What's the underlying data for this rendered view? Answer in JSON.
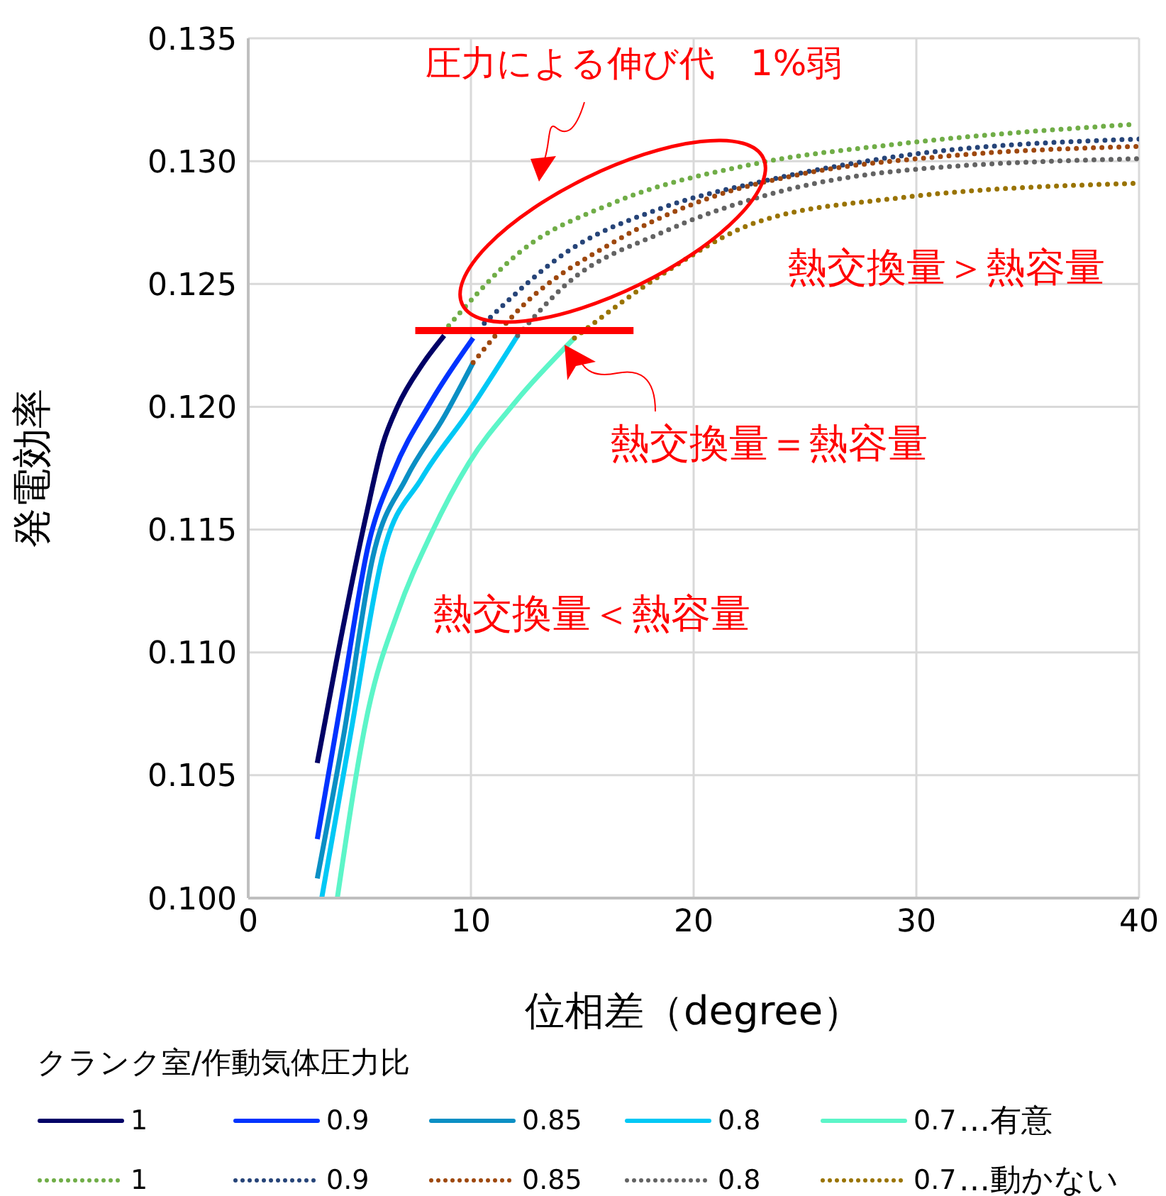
{
  "chart_data": {
    "type": "line",
    "xlabel": "位相差（degree）",
    "ylabel": "発電効率",
    "legend_title": "クランク室/作動気体圧力比",
    "xlim": [
      0,
      40
    ],
    "xticks": [
      0,
      10,
      20,
      30,
      40
    ],
    "ylim": [
      0.1,
      0.135
    ],
    "yticks": [
      {
        "value": 0.1,
        "label": "0.100"
      },
      {
        "value": 0.105,
        "label": "0.105"
      },
      {
        "value": 0.11,
        "label": "0.110"
      },
      {
        "value": 0.115,
        "label": "0.115"
      },
      {
        "value": 0.12,
        "label": "0.120"
      },
      {
        "value": 0.125,
        "label": "0.125"
      },
      {
        "value": 0.13,
        "label": "0.130"
      },
      {
        "value": 0.135,
        "label": "0.135"
      }
    ],
    "grid": true,
    "legend": "bottom",
    "marker": "none",
    "annotations": [
      "圧力による伸び代　1%弱",
      "熱交換量＞熱容量",
      "熱交換量＝熱容量",
      "熱交換量＜熱容量",
      "…有意",
      "…動かない"
    ],
    "series": [
      {
        "name": "1",
        "color": "#000066",
        "line_style": "solid",
        "x": [
          3.1,
          3.95,
          5.3,
          6.05,
          6.7,
          7.8,
          8.8
        ],
        "values": [
          0.1055,
          0.1096,
          0.1156,
          0.1185,
          0.12,
          0.1217,
          0.1229
        ]
      },
      {
        "name": "0.9",
        "color": "#0033ff",
        "line_style": "solid",
        "x": [
          3.1,
          4.3,
          5.4,
          6.5,
          8.2,
          10.1
        ],
        "values": [
          0.1024,
          0.1087,
          0.1144,
          0.1173,
          0.1202,
          0.1228
        ]
      },
      {
        "name": "0.85",
        "color": "#0a8fc4",
        "line_style": "solid",
        "x": [
          3.1,
          4.3,
          5.6,
          7.1,
          8.8,
          10.1
        ],
        "values": [
          0.1008,
          0.1067,
          0.1139,
          0.1171,
          0.1196,
          0.1218
        ]
      },
      {
        "name": "0.8",
        "color": "#00c8f5",
        "line_style": "solid",
        "x": [
          3.3,
          4.6,
          6.05,
          7.8,
          9.9,
          12.1
        ],
        "values": [
          0.1,
          0.1067,
          0.114,
          0.1171,
          0.1198,
          0.1229
        ]
      },
      {
        "name": "0.7",
        "color": "#5cf5c8",
        "line_style": "solid",
        "x": [
          4.0,
          5.4,
          6.7,
          8.2,
          9.9,
          12.0,
          14.65
        ],
        "values": [
          0.1,
          0.1077,
          0.1116,
          0.1148,
          0.1177,
          0.1202,
          0.1228
        ]
      },
      {
        "name": "1",
        "color": "#70ad47",
        "line_style": "dotted",
        "x": [
          9.0,
          12.2,
          16.4,
          22.8,
          29.2,
          39.8
        ],
        "values": [
          0.1233,
          0.1263,
          0.1283,
          0.1299,
          0.1307,
          0.1315
        ]
      },
      {
        "name": "0.9",
        "color": "#264478",
        "line_style": "dotted",
        "x": [
          10.6,
          14.3,
          18.6,
          23.2,
          29.2,
          40
        ],
        "values": [
          0.1234,
          0.1263,
          0.1281,
          0.1292,
          0.1302,
          0.1309
        ]
      },
      {
        "name": "0.85",
        "color": "#9e480e",
        "line_style": "dotted",
        "x": [
          10.1,
          12.2,
          16.4,
          20.7,
          25,
          31.3,
          40
        ],
        "values": [
          0.1218,
          0.124,
          0.1267,
          0.1285,
          0.1295,
          0.1302,
          0.1306
        ]
      },
      {
        "name": "0.8",
        "color": "#636363",
        "line_style": "dotted",
        "x": [
          12.1,
          14.3,
          18.6,
          23.2,
          29.2,
          40
        ],
        "values": [
          0.1229,
          0.125,
          0.1271,
          0.1286,
          0.1296,
          0.1301
        ]
      },
      {
        "name": "0.7",
        "color": "#997300",
        "line_style": "dotted",
        "x": [
          14.65,
          18.6,
          22.8,
          29.2,
          40
        ],
        "values": [
          0.1228,
          0.1254,
          0.1275,
          0.1285,
          0.1291
        ]
      },
      {
        "color": "#ff0000",
        "line_style": "solid",
        "x": [
          7.5,
          17.3
        ],
        "values": [
          0.1231,
          0.1231
        ]
      }
    ]
  }
}
